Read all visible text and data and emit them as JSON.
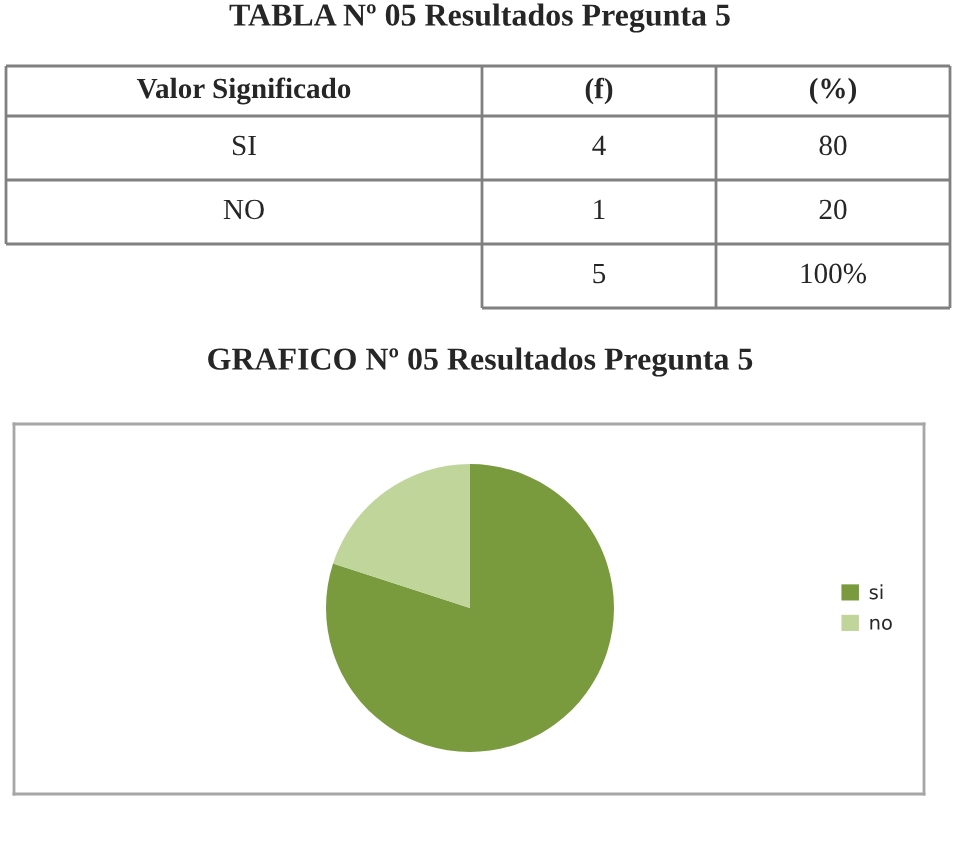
{
  "chart_data": [
    {
      "type": "other",
      "title": "TABLA Nº 05 Resultados Pregunta 5",
      "xlabel": "Valor Significado",
      "categories": [
        "SI",
        "NO"
      ],
      "series": [
        {
          "name": "(f)",
          "values": [
            4,
            1
          ]
        },
        {
          "name": "(%)",
          "values": [
            80,
            20
          ]
        }
      ],
      "data_labels": true,
      "totals": [
        "5",
        "100%"
      ]
    },
    {
      "type": "pie",
      "title": "GRAFICO Nº 05 Resultados Pregunta 5",
      "categories": [
        "si",
        "no"
      ],
      "values": [
        80,
        20
      ],
      "colors": [
        "#7a9a3e",
        "#c0d59a"
      ],
      "legend": "right"
    }
  ]
}
